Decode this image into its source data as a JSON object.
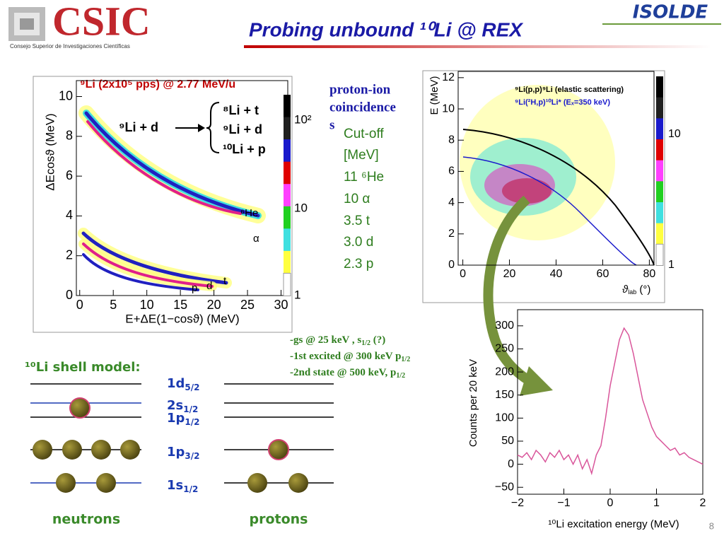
{
  "header": {
    "logo_text": "CSIC",
    "logo_subtitle": "Consejo Superior de Investigaciones Científicas",
    "title": "Probing unbound ¹⁰Li @ REX",
    "logo_right": "ISOLDE"
  },
  "left_plot": {
    "caption": "⁹Li (2x10⁵ pps) @ 2.77 MeV/u",
    "ylabel": "ΔEcosϑ (MeV)",
    "xlabel": "E+ΔE(1−cosϑ) (MeV)",
    "xlim": [
      -0.5,
      31
    ],
    "ylim": [
      0,
      10.8
    ],
    "xticks": [
      0,
      5,
      10,
      15,
      20,
      25,
      30
    ],
    "yticks": [
      0,
      2,
      4,
      6,
      8,
      10
    ],
    "colorbar_labels": [
      "10²",
      "10",
      "1"
    ],
    "reaction": "⁹Li + d",
    "products": [
      "⁸Li + t",
      "⁹Li + d",
      "¹⁰Li + p"
    ],
    "band_labels": [
      "⁶He",
      "α",
      "t",
      "d",
      "p"
    ]
  },
  "coincidence": {
    "title_lines": [
      "proton-ion",
      "coincidence",
      "s"
    ],
    "cutoff_lines": [
      "Cut-off",
      "[MeV]",
      "11 ⁶He",
      "10  α",
      "3.5 t",
      "3.0 d",
      "2.3 p"
    ]
  },
  "right_plot": {
    "ylabel": "E (MeV)",
    "xlabel": {
      "base": "ϑ",
      "sub": "lab",
      "tail": " (°)"
    },
    "legend": [
      "⁹Li(p,p)⁹Li   (elastic scattering)",
      "⁹Li(²H,p)¹⁰Li*  (Eₓ=350 keV)"
    ],
    "xlim": [
      -2,
      82
    ],
    "ylim": [
      0,
      12.4
    ],
    "xticks": [
      0,
      20,
      40,
      60,
      80
    ],
    "yticks": [
      0,
      2,
      4,
      6,
      8,
      10,
      12
    ],
    "colorbar_labels": [
      "10",
      "1"
    ]
  },
  "states": [
    {
      "text": "-gs @ 25 keV , s",
      "sub": "1/2",
      "tail": " (?)"
    },
    {
      "text": "-1st excited @ 300 keV p",
      "sub": "1/2",
      "tail": ""
    },
    {
      "text": "-2nd state @ 500 keV, p",
      "sub": "1/2",
      "tail": ""
    }
  ],
  "shell_model": {
    "title": "¹⁰Li shell model:",
    "levels": [
      {
        "base": "1d",
        "sub": "5/2"
      },
      {
        "base": "2s",
        "sub": "1/2"
      },
      {
        "base": "1p",
        "sub": "1/2"
      },
      {
        "base": "1p",
        "sub": "3/2"
      },
      {
        "base": "1s",
        "sub": "1/2"
      }
    ],
    "neutrons": "neutrons",
    "protons": "protons"
  },
  "spectrum": {
    "ylabel": "Counts per 20 keV",
    "xlabel": "¹⁰Li excitation energy (MeV)",
    "xlim": [
      -2,
      2
    ],
    "ylim": [
      -65,
      335
    ],
    "xticks": [
      {
        "value": -2,
        "label": "−2"
      },
      {
        "value": -1,
        "label": "−1"
      },
      0,
      1,
      2
    ],
    "yticks": [
      {
        "value": -50,
        "label": "−50"
      },
      0,
      50,
      100,
      150,
      200,
      250,
      300
    ],
    "x": [
      -2,
      -1.9,
      -1.8,
      -1.7,
      -1.6,
      -1.5,
      -1.4,
      -1.3,
      -1.2,
      -1.1,
      -1,
      -0.9,
      -0.8,
      -0.7,
      -0.6,
      -0.5,
      -0.4,
      -0.3,
      -0.2,
      -0.1,
      0,
      0.1,
      0.2,
      0.3,
      0.4,
      0.5,
      0.6,
      0.7,
      0.8,
      0.9,
      1,
      1.1,
      1.2,
      1.3,
      1.4,
      1.5,
      1.6,
      1.7,
      1.8,
      1.9,
      2
    ],
    "values": [
      20,
      15,
      25,
      10,
      30,
      20,
      5,
      25,
      15,
      30,
      10,
      20,
      0,
      20,
      -10,
      10,
      -20,
      20,
      40,
      100,
      170,
      220,
      270,
      295,
      280,
      240,
      190,
      140,
      110,
      80,
      60,
      50,
      40,
      30,
      35,
      20,
      25,
      15,
      10,
      5,
      0
    ],
    "color": "#d9559a"
  },
  "page_number": 8
}
